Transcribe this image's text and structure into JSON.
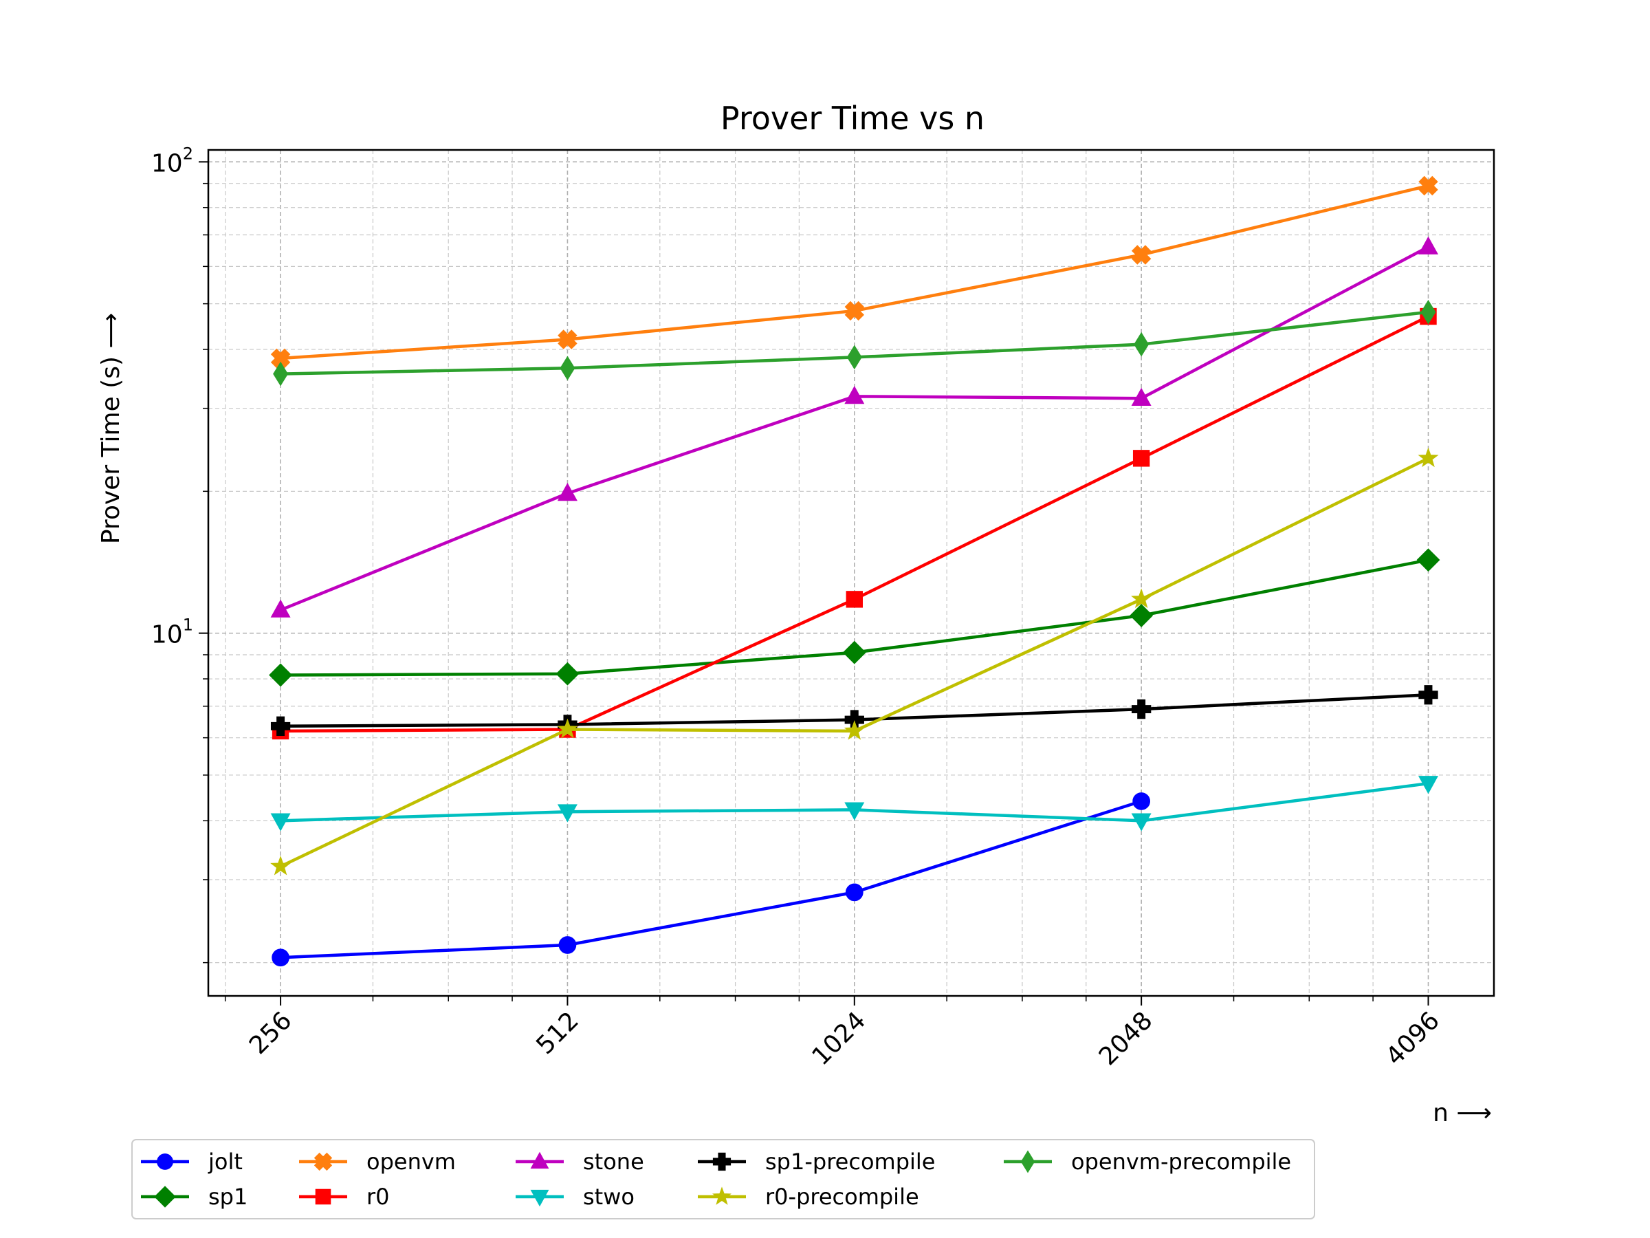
{
  "chart_data": {
    "type": "line",
    "title": "Prover Time vs n",
    "xlabel": "n ⟶",
    "ylabel": "Prover Time (s) ⟶",
    "x_scale": "log2",
    "y_scale": "log10",
    "x": [
      256,
      512,
      1024,
      2048,
      4096
    ],
    "x_tick_labels": [
      "256",
      "512",
      "1024",
      "2048",
      "4096"
    ],
    "y_tick_labels": [
      {
        "value": 10,
        "base": "10",
        "exp": "1"
      },
      {
        "value": 100,
        "base": "10",
        "exp": "2"
      }
    ],
    "xlim": [
      215,
      4800
    ],
    "ylim": [
      1.7,
      106
    ],
    "grid": true,
    "legend_position": "bottom",
    "series": [
      {
        "name": "jolt",
        "color": "#0000ff",
        "marker": "circle",
        "values": [
          2.05,
          2.18,
          2.82,
          4.4,
          null
        ]
      },
      {
        "name": "sp1",
        "color": "#008000",
        "marker": "diamond",
        "values": [
          8.15,
          8.2,
          9.1,
          10.9,
          14.3
        ]
      },
      {
        "name": "openvm",
        "color": "#ff7f0e",
        "marker": "x-filled",
        "values": [
          38.3,
          42.0,
          48.3,
          63.5,
          89.0
        ]
      },
      {
        "name": "r0",
        "color": "#ff0000",
        "marker": "square",
        "values": [
          6.2,
          6.25,
          11.8,
          23.5,
          47.0
        ]
      },
      {
        "name": "stone",
        "color": "#bf00bf",
        "marker": "triangle-up",
        "values": [
          11.2,
          19.8,
          31.8,
          31.5,
          66.0
        ]
      },
      {
        "name": "stwo",
        "color": "#00bfbf",
        "marker": "triangle-down",
        "values": [
          4.0,
          4.18,
          4.22,
          4.0,
          4.8
        ]
      },
      {
        "name": "sp1-precompile",
        "color": "#000000",
        "marker": "plus-filled",
        "values": [
          6.35,
          6.4,
          6.55,
          6.9,
          7.4
        ]
      },
      {
        "name": "r0-precompile",
        "color": "#bfbf00",
        "marker": "star",
        "values": [
          3.2,
          6.25,
          6.2,
          11.8,
          23.5
        ]
      },
      {
        "name": "openvm-precompile",
        "color": "#2ca02c",
        "marker": "thin-diamond",
        "values": [
          35.5,
          36.5,
          38.5,
          41.0,
          48.0
        ]
      }
    ]
  }
}
